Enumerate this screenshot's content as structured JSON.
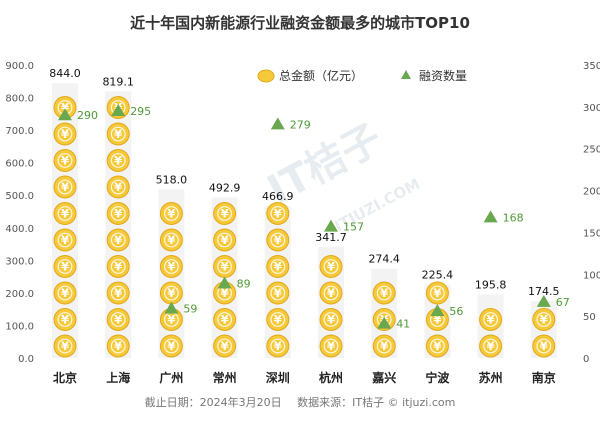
{
  "title": "近十年国内新能源行业融资金额最多的城市TOP10",
  "footer": {
    "date": "截止日期：2024年3月20日",
    "source": "数据来源：IT桔子 © itjuzi.com"
  },
  "watermark": {
    "main": "IT桔子",
    "sub": "ITJUZI.COM"
  },
  "colors": {
    "coin": "#f6c93a",
    "coin_dark": "#e0a81c",
    "triangle": "#6aa84f",
    "count_label": "#4f9a35"
  },
  "chart_data": {
    "type": "bar",
    "title": "近十年国内新能源行业融资金额最多的城市TOP10",
    "categories": [
      "北京",
      "上海",
      "广州",
      "常州",
      "深圳",
      "杭州",
      "嘉兴",
      "宁波",
      "苏州",
      "南京"
    ],
    "series": [
      {
        "name": "总金额（亿元）",
        "axis": "left",
        "marker": "coin-stack",
        "values": [
          844.0,
          819.1,
          518.0,
          492.9,
          466.9,
          341.7,
          274.4,
          225.4,
          195.8,
          174.5
        ],
        "labels": [
          "844.0",
          "819.1",
          "518.0",
          "492.9",
          "466.9",
          "341.7",
          "274.4",
          "225.4",
          "195.8",
          "174.5"
        ]
      },
      {
        "name": "融资数量",
        "axis": "right",
        "marker": "triangle",
        "values": [
          290,
          295,
          59,
          89,
          279,
          157,
          41,
          56,
          168,
          67
        ],
        "labels": [
          "290",
          "295",
          "59",
          "89",
          "279",
          "157",
          "41",
          "56",
          "168",
          "67"
        ]
      }
    ],
    "y_left": {
      "range": [
        0,
        900
      ],
      "ticks": [
        "0.0",
        "100.0",
        "200.0",
        "300.0",
        "400.0",
        "500.0",
        "600.0",
        "700.0",
        "800.0",
        "900.0"
      ]
    },
    "y_right": {
      "range": [
        0,
        350
      ],
      "ticks": [
        "0",
        "50",
        "100",
        "150",
        "200",
        "250",
        "300",
        "350"
      ]
    },
    "grid": false,
    "legend_position": "top-right"
  }
}
